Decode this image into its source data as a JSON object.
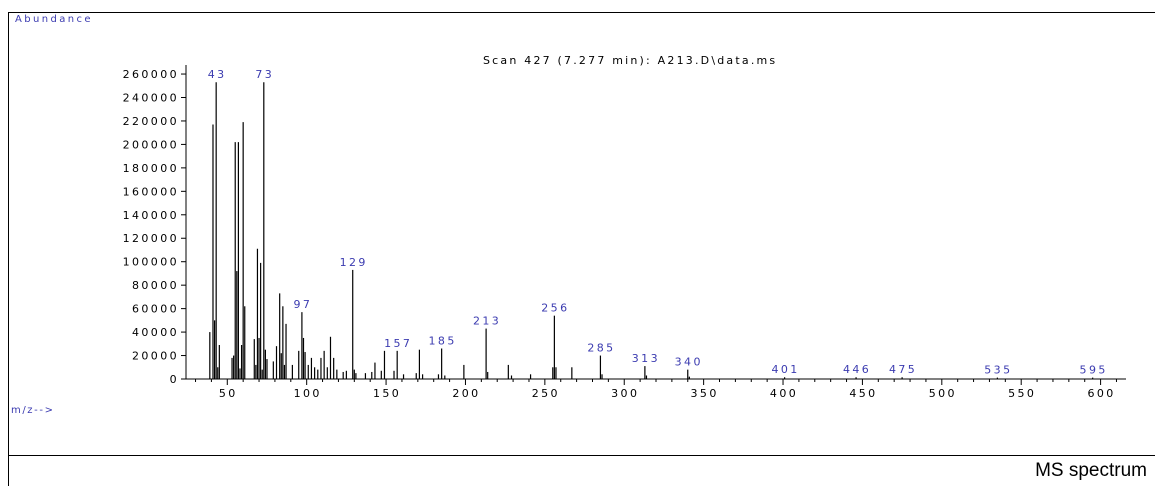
{
  "window": {
    "caption": "MS spectrum"
  },
  "colors": {
    "label_text": "#3b3bb0",
    "axis": "#000000",
    "bars": "#000000"
  },
  "chart_data": {
    "type": "bar",
    "title": "Scan 427 (7.277 min): A213.D\\data.ms",
    "ylabel": "Abundance",
    "xlabel": "m/z-->",
    "xlim": [
      24,
      616
    ],
    "ylim": [
      0,
      266000
    ],
    "xticks": [
      50,
      100,
      150,
      200,
      250,
      300,
      350,
      400,
      450,
      500,
      550,
      600
    ],
    "yticks": [
      0,
      20000,
      40000,
      60000,
      80000,
      100000,
      120000,
      140000,
      160000,
      180000,
      200000,
      220000,
      240000,
      260000
    ],
    "grid": false,
    "peak_labels": [
      {
        "mz": 43,
        "text": "43"
      },
      {
        "mz": 73,
        "text": "73"
      },
      {
        "mz": 97,
        "text": "97"
      },
      {
        "mz": 129,
        "text": "129"
      },
      {
        "mz": 157,
        "text": "157"
      },
      {
        "mz": 185,
        "text": "185"
      },
      {
        "mz": 213,
        "text": "213"
      },
      {
        "mz": 256,
        "text": "256"
      },
      {
        "mz": 285,
        "text": "285"
      },
      {
        "mz": 313,
        "text": "313"
      },
      {
        "mz": 340,
        "text": "340"
      },
      {
        "mz": 401,
        "text": "401"
      },
      {
        "mz": 446,
        "text": "446"
      },
      {
        "mz": 475,
        "text": "475"
      },
      {
        "mz": 535,
        "text": "535"
      },
      {
        "mz": 595,
        "text": "595"
      }
    ],
    "peaks": [
      [
        39,
        40000
      ],
      [
        41,
        217000
      ],
      [
        42,
        50000
      ],
      [
        43,
        253000
      ],
      [
        44,
        10000
      ],
      [
        45,
        29000
      ],
      [
        53,
        18000
      ],
      [
        54,
        20000
      ],
      [
        55,
        202000
      ],
      [
        56,
        92000
      ],
      [
        57,
        202000
      ],
      [
        58,
        9000
      ],
      [
        59,
        29000
      ],
      [
        60,
        219000
      ],
      [
        61,
        62000
      ],
      [
        67,
        34000
      ],
      [
        68,
        12000
      ],
      [
        69,
        111000
      ],
      [
        70,
        35000
      ],
      [
        71,
        99000
      ],
      [
        72,
        8000
      ],
      [
        73,
        253000
      ],
      [
        74,
        25000
      ],
      [
        75,
        17000
      ],
      [
        79,
        15000
      ],
      [
        81,
        28000
      ],
      [
        83,
        73000
      ],
      [
        84,
        22000
      ],
      [
        85,
        62000
      ],
      [
        86,
        12000
      ],
      [
        87,
        47000
      ],
      [
        91,
        12000
      ],
      [
        95,
        24000
      ],
      [
        97,
        57000
      ],
      [
        98,
        35000
      ],
      [
        99,
        23000
      ],
      [
        101,
        12000
      ],
      [
        103,
        18000
      ],
      [
        105,
        10000
      ],
      [
        107,
        8000
      ],
      [
        109,
        18000
      ],
      [
        111,
        24000
      ],
      [
        113,
        10000
      ],
      [
        115,
        36000
      ],
      [
        117,
        18000
      ],
      [
        119,
        8000
      ],
      [
        123,
        6000
      ],
      [
        125,
        7000
      ],
      [
        129,
        93000
      ],
      [
        130,
        8000
      ],
      [
        131,
        5000
      ],
      [
        137,
        5000
      ],
      [
        141,
        6000
      ],
      [
        143,
        14000
      ],
      [
        147,
        7000
      ],
      [
        149,
        24000
      ],
      [
        155,
        7000
      ],
      [
        157,
        24000
      ],
      [
        161,
        4000
      ],
      [
        169,
        5000
      ],
      [
        171,
        25000
      ],
      [
        173,
        4000
      ],
      [
        183,
        4000
      ],
      [
        185,
        26000
      ],
      [
        187,
        3000
      ],
      [
        199,
        12000
      ],
      [
        213,
        43000
      ],
      [
        214,
        6000
      ],
      [
        227,
        12000
      ],
      [
        229,
        3000
      ],
      [
        241,
        4000
      ],
      [
        255,
        10000
      ],
      [
        256,
        54000
      ],
      [
        257,
        10000
      ],
      [
        267,
        10000
      ],
      [
        285,
        20000
      ],
      [
        286,
        4000
      ],
      [
        313,
        11000
      ],
      [
        314,
        3000
      ],
      [
        340,
        8000
      ],
      [
        341,
        2000
      ],
      [
        401,
        1500
      ],
      [
        446,
        1500
      ],
      [
        475,
        1500
      ],
      [
        535,
        1200
      ],
      [
        595,
        1200
      ]
    ]
  }
}
